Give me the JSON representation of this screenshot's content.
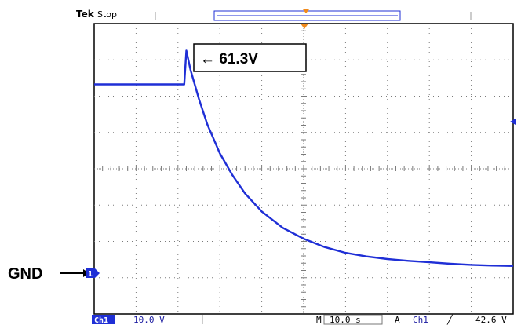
{
  "header": {
    "brand": "Tek",
    "state": "Stop"
  },
  "annotation": {
    "text": "← 61.3V"
  },
  "ground_marker": {
    "label": "GND"
  },
  "status_bar": {
    "channel": "Ch1",
    "volts_per_div": "10.0 V",
    "time_prefix": "M",
    "time_per_div": "10.0 s",
    "trigger_prefix": "A",
    "trigger_channel": "Ch1",
    "trigger_slope": "╱",
    "trigger_level": "42.6 V"
  },
  "colors": {
    "trace": "#1f2fd6",
    "grid": "#7a7a7a",
    "trigger_marker": "#f08a1c"
  },
  "chart_data": {
    "type": "line",
    "x_divisions": 10,
    "y_divisions": 8,
    "volts_per_div": 10.0,
    "seconds_per_div": 10.0,
    "ground_level_V": 0,
    "peak_V": 61.3,
    "trigger_level_V": 42.6,
    "series": [
      {
        "x": [
          0,
          5,
          10,
          15,
          20,
          21.5,
          22,
          23,
          25,
          27,
          30,
          33,
          36,
          40,
          45,
          50,
          55,
          60,
          65,
          70,
          75,
          80,
          85,
          90,
          95,
          100
        ],
        "y": [
          52.0,
          52.0,
          52.0,
          52.0,
          52.0,
          52.0,
          61.3,
          56.0,
          48.0,
          41.0,
          33.0,
          27.0,
          22.0,
          17.0,
          12.5,
          9.5,
          7.2,
          5.6,
          4.6,
          3.9,
          3.4,
          3.0,
          2.6,
          2.3,
          2.1,
          2.0
        ]
      }
    ]
  }
}
